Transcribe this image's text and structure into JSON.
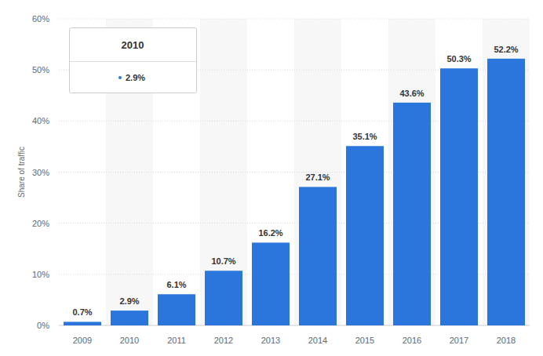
{
  "chart_data": {
    "type": "bar",
    "y_label": "Share of traffic",
    "categories": [
      "2009",
      "2010",
      "2011",
      "2012",
      "2013",
      "2014",
      "2015",
      "2016",
      "2017",
      "2018"
    ],
    "values": [
      0.7,
      2.9,
      6.1,
      10.7,
      16.2,
      27.1,
      35.1,
      43.6,
      50.3,
      52.2
    ],
    "value_labels": [
      "0.7%",
      "2.9%",
      "6.1%",
      "10.7%",
      "16.2%",
      "27.1%",
      "35.1%",
      "43.6%",
      "50.3%",
      "52.2%"
    ],
    "color": "#2a76dd",
    "ylim": [
      0,
      60
    ],
    "yticks": [
      {
        "value": 0,
        "label": "0%"
      },
      {
        "value": 10,
        "label": "10%"
      },
      {
        "value": 20,
        "label": "20%"
      },
      {
        "value": 30,
        "label": "30%"
      },
      {
        "value": 40,
        "label": "40%"
      },
      {
        "value": 50,
        "label": "50%"
      },
      {
        "value": 60,
        "label": "60%"
      }
    ],
    "grid": true,
    "data_labels": true,
    "tooltip": {
      "title": "2010",
      "text": "2.9%"
    }
  }
}
